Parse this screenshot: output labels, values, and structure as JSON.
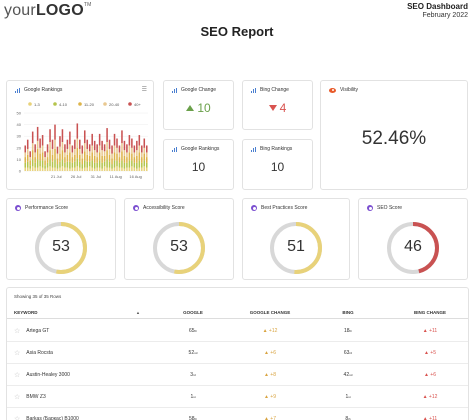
{
  "header": {
    "logo_light": "your",
    "logo_bold": "LOGO",
    "logo_tm": "TM",
    "report_name": "SEO Dashboard",
    "report_date": "February 2022",
    "page_title": "SEO Report"
  },
  "google_rankings_chart": {
    "title": "Google Rankings",
    "legend": [
      "1-3",
      "4-10",
      "11-20",
      "20-40",
      "40+"
    ],
    "legend_colors": [
      "#e8d27a",
      "#b5c44c",
      "#ddb44a",
      "#e9c890",
      "#c95252"
    ],
    "y_ticks": [
      "50",
      "40",
      "30",
      "20",
      "10",
      "0"
    ],
    "x_ticks": [
      "21 Jul",
      "26 Jul",
      "31 Jul",
      "11 Aug",
      "16 Aug"
    ]
  },
  "chart_data": {
    "type": "bar",
    "title": "Google Rankings",
    "stacked": true,
    "ylim": [
      0,
      50
    ],
    "x_tick_labels": [
      "21 Jul",
      "26 Jul",
      "31 Jul",
      "11 Aug",
      "16 Aug"
    ],
    "series": [
      {
        "name": "1-3",
        "color": "#e8d27a",
        "values": [
          3,
          3,
          2,
          4,
          3,
          3,
          4,
          3,
          2,
          3,
          4,
          3,
          3,
          2,
          3,
          4,
          3,
          3,
          2,
          3,
          3,
          4,
          3,
          2,
          3,
          3,
          4,
          3,
          2,
          3,
          3,
          2,
          4,
          3,
          3,
          2,
          3,
          4,
          3,
          3,
          2,
          3,
          3,
          4,
          3,
          2,
          3,
          3,
          4,
          3
        ]
      },
      {
        "name": "4-10",
        "color": "#b5c44c",
        "values": [
          4,
          5,
          3,
          6,
          4,
          7,
          5,
          6,
          3,
          4,
          6,
          5,
          7,
          4,
          5,
          6,
          4,
          5,
          6,
          4,
          5,
          7,
          5,
          4,
          6,
          5,
          4,
          6,
          5,
          4,
          6,
          5,
          4,
          7,
          5,
          4,
          6,
          5,
          4,
          6,
          5,
          4,
          6,
          5,
          4,
          5,
          6,
          4,
          5,
          4
        ]
      },
      {
        "name": "11-20",
        "color": "#ddb44a",
        "values": [
          5,
          6,
          4,
          8,
          5,
          9,
          6,
          7,
          4,
          5,
          8,
          6,
          9,
          5,
          7,
          8,
          5,
          6,
          8,
          5,
          6,
          9,
          6,
          5,
          8,
          6,
          5,
          7,
          6,
          5,
          7,
          6,
          5,
          8,
          6,
          5,
          7,
          6,
          5,
          8,
          6,
          5,
          7,
          6,
          5,
          6,
          7,
          5,
          6,
          5
        ]
      },
      {
        "name": "20-40",
        "color": "#e9c890",
        "values": [
          4,
          5,
          3,
          6,
          4,
          7,
          5,
          6,
          3,
          4,
          7,
          5,
          8,
          4,
          6,
          7,
          4,
          5,
          7,
          4,
          5,
          8,
          5,
          4,
          7,
          5,
          4,
          6,
          5,
          4,
          6,
          5,
          4,
          7,
          5,
          4,
          6,
          5,
          4,
          7,
          5,
          4,
          6,
          5,
          4,
          5,
          6,
          4,
          5,
          4
        ]
      },
      {
        "name": "40+",
        "color": "#c95252",
        "values": [
          6,
          8,
          5,
          10,
          7,
          12,
          8,
          9,
          5,
          7,
          11,
          8,
          13,
          6,
          9,
          11,
          7,
          8,
          11,
          6,
          8,
          13,
          8,
          7,
          11,
          8,
          6,
          10,
          8,
          7,
          10,
          8,
          6,
          12,
          8,
          7,
          10,
          8,
          6,
          11,
          8,
          7,
          9,
          8,
          6,
          8,
          9,
          6,
          8,
          6
        ]
      }
    ]
  },
  "kpis": {
    "google_change": {
      "title": "Google Change",
      "value": "10"
    },
    "bing_change": {
      "title": "Bing Change",
      "value": "4"
    },
    "google_rankings": {
      "title": "Google Rankings",
      "value": "10"
    },
    "bing_rankings": {
      "title": "Bing Rankings",
      "value": "10"
    },
    "visibility": {
      "title": "Visibility",
      "value": "52.46%"
    }
  },
  "scores": [
    {
      "title": "Performance Score",
      "value": "53",
      "percent": 53,
      "color": "#e8d27a"
    },
    {
      "title": "Accessibility Score",
      "value": "53",
      "percent": 53,
      "color": "#e8d27a"
    },
    {
      "title": "Best Practices Score",
      "value": "51",
      "percent": 51,
      "color": "#e8d27a"
    },
    {
      "title": "SEO Score",
      "value": "46",
      "percent": 46,
      "color": "#c95252"
    }
  ],
  "table": {
    "note": "Showing 35 of 35 Rows",
    "headers": {
      "keyword": "KEYWORD",
      "google": "GOOGLE",
      "google_change": "GOOGLE CHANGE",
      "bing": "BING",
      "bing_change": "BING CHANGE"
    },
    "rows": [
      {
        "keyword": "Artega GT",
        "google": "65",
        "google_sup": "th",
        "google_change": "+12",
        "bing": "18",
        "bing_sup": "th",
        "bing_change": "+11"
      },
      {
        "keyword": "Asia Rocsta",
        "google": "52",
        "google_sup": "nd",
        "google_change": "+6",
        "bing": "63",
        "bing_sup": "rd",
        "bing_change": "+5"
      },
      {
        "keyword": "Austin-Healey 3000",
        "google": "3",
        "google_sup": "rd",
        "google_change": "+8",
        "bing": "42",
        "bing_sup": "nd",
        "bing_change": "+6"
      },
      {
        "keyword": "BMW Z3",
        "google": "1",
        "google_sup": "st",
        "google_change": "+9",
        "bing": "1",
        "bing_sup": "st",
        "bing_change": "+12"
      },
      {
        "keyword": "Barkas (Баркас) B1000",
        "google": "58",
        "google_sup": "th",
        "google_change": "+7",
        "bing": "8",
        "bing_sup": "th",
        "bing_change": "+11"
      }
    ],
    "change_colors": {
      "up": "#d9a441",
      "down": "#d9534f"
    }
  }
}
